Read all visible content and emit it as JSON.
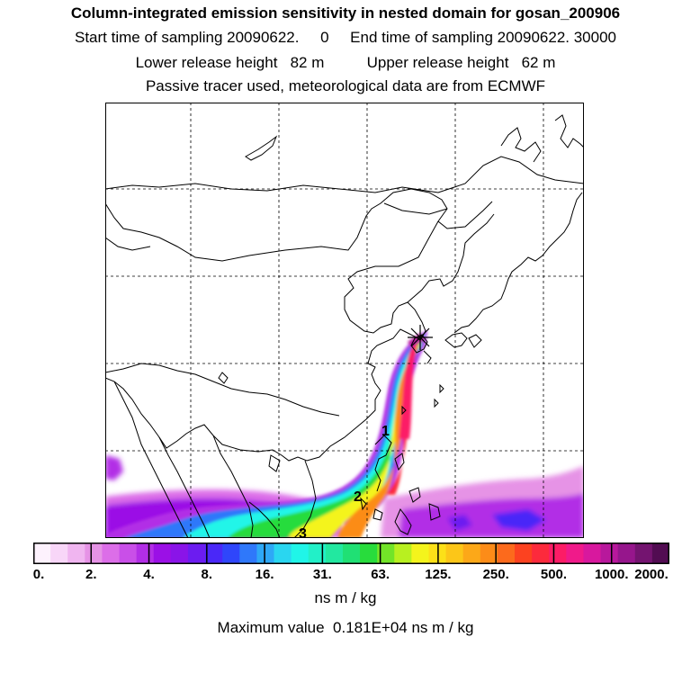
{
  "header": {
    "title": "Column-integrated emission sensitivity in nested domain for gosan_200906",
    "sampling_line": "Start time of sampling 20090622.     0     End time of sampling 20090622. 30000",
    "release_line": "Lower release height   82 m          Upper release height   62 m",
    "tracer_line": "Passive tracer used, meteorological data are from ECMWF"
  },
  "map": {
    "release_marker": "station-asterisk",
    "plume_labels": [
      "1",
      "2",
      "3"
    ]
  },
  "colorbar": {
    "tick_labels": [
      "0.",
      "2.",
      "4.",
      "8.",
      "16.",
      "31.",
      "63.",
      "125.",
      "250.",
      "500.",
      "1000.",
      "2000."
    ],
    "colors": [
      "#fdf2fd",
      "#f8d6f8",
      "#f0b5f0",
      "#e693e6",
      "#dc6ee8",
      "#c94fe8",
      "#b22ee6",
      "#9b10e6",
      "#8a14e8",
      "#6c1cf0",
      "#4a28f8",
      "#2f46fb",
      "#2f78fa",
      "#2ea8f6",
      "#2ad6f0",
      "#20f5e8",
      "#22f0c8",
      "#22e8a0",
      "#20e074",
      "#28dc3c",
      "#72e428",
      "#b8f020",
      "#f4f41c",
      "#fce018",
      "#fcc618",
      "#fca818",
      "#fc8c18",
      "#fc6a1c",
      "#fc4220",
      "#fc2a3c",
      "#fc1c66",
      "#f01a8a",
      "#d8189e",
      "#b8189c",
      "#96168c",
      "#741470",
      "#520c52"
    ],
    "units": "ns m / kg",
    "maximum_line": "Maximum value  0.181E+04 ns m / kg"
  }
}
